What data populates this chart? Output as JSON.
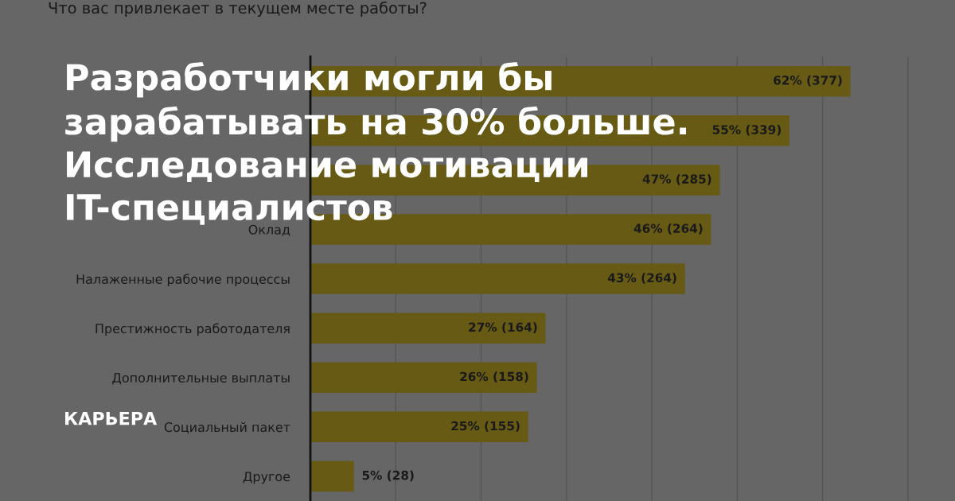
{
  "chart_data": {
    "type": "bar",
    "orientation": "horizontal",
    "title": "Разработчики могли бы\nзарабатывать на 30% больше.\nИсследование мотивации\nIT-специалистов",
    "subtitle": "Что вас привлекает в текущем месте работы?",
    "annotations": [
      "КАРЬЕРА"
    ],
    "categories": [
      null,
      null,
      null,
      "Оклад",
      "Налаженные рабочие процессы",
      "Престижность работодателя",
      "Дополнительные выплаты",
      "Социальный пакет",
      "Другое"
    ],
    "values": [
      62,
      55,
      47,
      46,
      43,
      27,
      26,
      25,
      5
    ],
    "value_labels": [
      "62% (377)",
      "55% (339)",
      "47% (285)",
      "46% (264)",
      "43% (264)",
      "27% (164)",
      "26% (158)",
      "25% (155)",
      "5% (28)"
    ],
    "color": "#675a14",
    "xlim": [
      0,
      74
    ],
    "xticks": [
      {
        "value": 9.8,
        "label": null
      },
      {
        "value": 19.6,
        "label": null
      },
      {
        "value": 29.4,
        "label": null
      },
      {
        "value": 39.2,
        "label": null
      },
      {
        "value": 49,
        "label": null
      },
      {
        "value": 58.8,
        "label": null
      },
      {
        "value": 68.6,
        "label": null
      }
    ],
    "grid": "x"
  }
}
